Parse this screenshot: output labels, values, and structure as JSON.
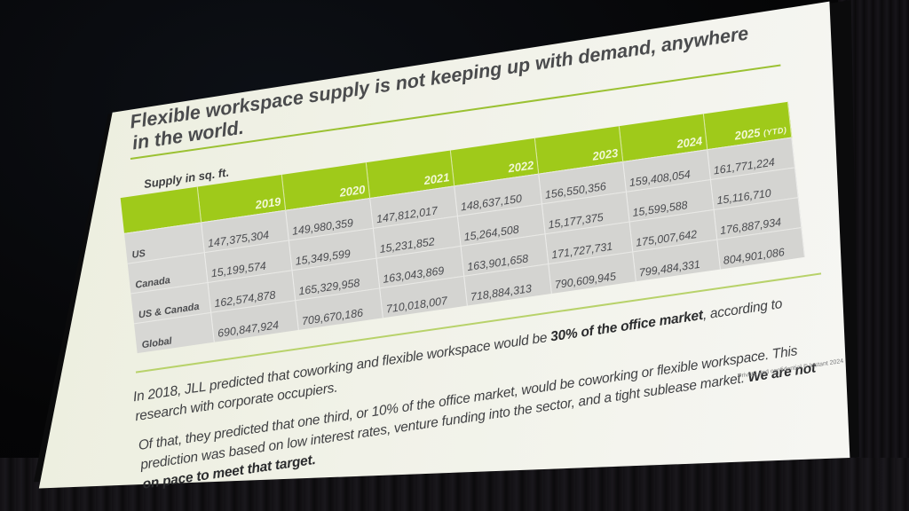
{
  "slide": {
    "title": "Flexible workspace supply is not keeping up with demand, anywhere in the world.",
    "table_caption": "Supply in sq. ft.",
    "footer_note": "Private and confidential © Instant 2024",
    "accent_color": "#9fca1a",
    "paragraph_1": {
      "pre": "In 2018, JLL predicted that coworking and flexible workspace would be ",
      "bold": "30% of the office market",
      "post": ", according to research with corporate occupiers."
    },
    "paragraph_2": {
      "pre": "Of that, they predicted that one third, or 10% of the office market, would be coworking or flexible workspace. This prediction was based on low interest rates, venture funding into the sector, and a tight sublease market. ",
      "bold": "We are not on pace to meet that target."
    }
  },
  "chart_data": {
    "type": "table",
    "title": "Flexible workspace supply is not keeping up with demand, anywhere in the world.",
    "subtitle": "Supply in sq. ft.",
    "columns": [
      "2019",
      "2020",
      "2021",
      "2022",
      "2023",
      "2024",
      "2025 (YTD)"
    ],
    "column_labels": [
      {
        "year": "2019",
        "suffix": ""
      },
      {
        "year": "2020",
        "suffix": ""
      },
      {
        "year": "2021",
        "suffix": ""
      },
      {
        "year": "2022",
        "suffix": ""
      },
      {
        "year": "2023",
        "suffix": ""
      },
      {
        "year": "2024",
        "suffix": ""
      },
      {
        "year": "2025",
        "suffix": "(YTD)"
      }
    ],
    "rows": [
      {
        "label": "US",
        "values": [
          "147,375,304",
          "149,980,359",
          "147,812,017",
          "148,637,150",
          "156,550,356",
          "159,408,054",
          "161,771,224"
        ]
      },
      {
        "label": "Canada",
        "values": [
          "15,199,574",
          "15,349,599",
          "15,231,852",
          "15,264,508",
          "15,177,375",
          "15,599,588",
          "15,116,710"
        ]
      },
      {
        "label": "US & Canada",
        "values": [
          "162,574,878",
          "165,329,958",
          "163,043,869",
          "163,901,658",
          "171,727,731",
          "175,007,642",
          "176,887,934"
        ]
      },
      {
        "label": "Global",
        "values": [
          "690,847,924",
          "709,670,186",
          "710,018,007",
          "718,884,313",
          "790,609,945",
          "799,484,331",
          "804,901,086"
        ]
      }
    ],
    "series": [
      {
        "name": "US",
        "values": [
          147375304,
          149980359,
          147812017,
          148637150,
          156550356,
          159408054,
          161771224
        ]
      },
      {
        "name": "Canada",
        "values": [
          15199574,
          15349599,
          15231852,
          15264508,
          15177375,
          15599588,
          15116710
        ]
      },
      {
        "name": "US & Canada",
        "values": [
          162574878,
          165329958,
          163043869,
          163901658,
          171727731,
          175007642,
          176887934
        ]
      },
      {
        "name": "Global",
        "values": [
          690847924,
          709670186,
          710018007,
          718884313,
          790609945,
          799484331,
          804901086
        ]
      }
    ],
    "categories": [
      "2019",
      "2020",
      "2021",
      "2022",
      "2023",
      "2024",
      "2025 (YTD)"
    ],
    "unit": "sq. ft."
  }
}
